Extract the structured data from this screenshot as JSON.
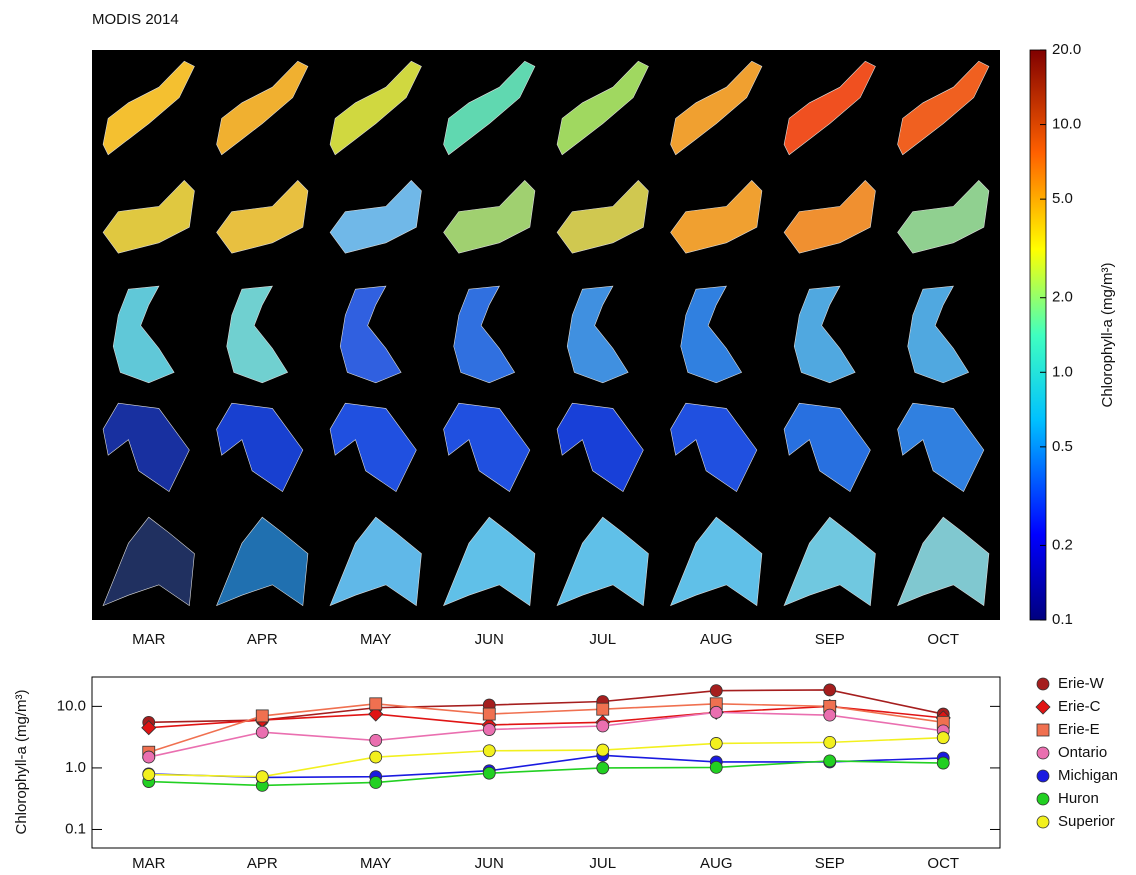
{
  "title": "MODIS 2014",
  "colorbar": {
    "label": "Chlorophyll-a (mg/m³)",
    "log": true,
    "ylim": [
      0.1,
      20
    ],
    "yticks": [
      {
        "value": 20,
        "label": "20.0"
      },
      {
        "value": 10,
        "label": "10.0"
      },
      {
        "value": 5,
        "label": "5.0"
      },
      {
        "value": 2,
        "label": "2.0"
      },
      {
        "value": 1,
        "label": "1.0"
      },
      0.5,
      0.2,
      0.1
    ]
  },
  "chart_data": {
    "type": "line",
    "y_label": "Chlorophyll-a (mg/m³)",
    "log_y": true,
    "legend": "right",
    "categories": [
      "MAR",
      "APR",
      "MAY",
      "JUN",
      "JUL",
      "AUG",
      "SEP",
      "OCT"
    ],
    "ylim": [
      0.05,
      30
    ],
    "yticks": [
      0.1,
      {
        "value": 1,
        "label": "1.0"
      },
      {
        "value": 10,
        "label": "10.0"
      }
    ],
    "series": [
      {
        "name": "Erie-W",
        "color": "#a51e1e",
        "marker": "circle",
        "values": [
          5.5,
          6,
          9.5,
          10.5,
          12,
          18,
          18.5,
          7.5
        ]
      },
      {
        "name": "Erie-C",
        "color": "#e01414",
        "marker": "diamond",
        "values": [
          4.5,
          6,
          7.5,
          5,
          5.5,
          8,
          10,
          6.5
        ]
      },
      {
        "name": "Erie-E",
        "color": "#f07050",
        "marker": "square",
        "values": [
          1.8,
          7,
          11,
          7.5,
          9,
          11,
          10,
          5.5
        ]
      },
      {
        "name": "Ontario",
        "color": "#ea6fb0",
        "marker": "circle",
        "values": [
          1.5,
          3.8,
          2.8,
          4.2,
          4.8,
          8,
          7.2,
          4
        ]
      },
      {
        "name": "Michigan",
        "color": "#1a1ae0",
        "marker": "circle",
        "values": [
          0.8,
          0.7,
          0.72,
          0.9,
          1.6,
          1.25,
          1.25,
          1.45
        ]
      },
      {
        "name": "Huron",
        "color": "#22d022",
        "marker": "circle",
        "values": [
          0.6,
          0.52,
          0.58,
          0.82,
          1.0,
          1.02,
          1.3,
          1.2
        ]
      },
      {
        "name": "Superior",
        "color": "#f2f01e",
        "marker": "circle",
        "values": [
          0.78,
          0.72,
          1.5,
          1.9,
          1.95,
          2.5,
          2.6,
          3.1
        ]
      }
    ]
  }
}
